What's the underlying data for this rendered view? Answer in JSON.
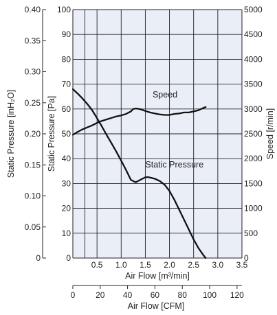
{
  "chart_data": {
    "type": "line",
    "plot_bg": "#e9eef7",
    "line_color": "#111111",
    "grid": true,
    "x_primary": {
      "label": "Air Flow [m³/min]",
      "range": [
        0,
        3.5
      ],
      "ticks": [
        "0.5",
        "1.0",
        "1.5",
        "2.0",
        "2.5",
        "3.0",
        "3.5"
      ],
      "tick_values": [
        0.5,
        1.0,
        1.5,
        2.0,
        2.5,
        3.0,
        3.5
      ]
    },
    "x_secondary": {
      "label": "Air Flow [CFM]",
      "range": [
        0,
        123.6
      ],
      "ticks": [
        "0",
        "20",
        "40",
        "60",
        "80",
        "100",
        "120"
      ],
      "tick_values": [
        0,
        20,
        40,
        60,
        80,
        100,
        120
      ]
    },
    "y_left_outer": {
      "label": "Static Pressure [inH₂O]",
      "ticks": [
        "0",
        "0.05",
        "0.10",
        "0.15",
        "0.20",
        "0.25",
        "0.30",
        "0.35",
        "0.40"
      ],
      "tick_values": [
        0,
        0.05,
        0.1,
        0.15,
        0.2,
        0.25,
        0.3,
        0.35,
        0.4
      ]
    },
    "y_left_inner": {
      "label": "Static Pressure [Pa]",
      "range": [
        0,
        100
      ],
      "ticks": [
        "0",
        "10",
        "20",
        "30",
        "40",
        "50",
        "60",
        "70",
        "80",
        "90",
        "100"
      ],
      "tick_values": [
        0,
        10,
        20,
        30,
        40,
        50,
        60,
        70,
        80,
        90,
        100
      ]
    },
    "y_right": {
      "label": "Speed [r/min]",
      "range": [
        0,
        5000
      ],
      "ticks": [
        "0",
        "500",
        "1000",
        "1500",
        "2000",
        "2500",
        "3000",
        "3500",
        "4000",
        "4500",
        "5000"
      ],
      "tick_values": [
        0,
        500,
        1000,
        1500,
        2000,
        2500,
        3000,
        3500,
        4000,
        4500,
        5000
      ]
    },
    "series": [
      {
        "name": "Static Pressure",
        "axis": "y_left_inner",
        "x": [
          0,
          0.1,
          0.2,
          0.3,
          0.4,
          0.5,
          0.6,
          0.7,
          0.8,
          0.9,
          1.0,
          1.1,
          1.2,
          1.3,
          1.35,
          1.45,
          1.5,
          1.55,
          1.6,
          1.7,
          1.8,
          1.9,
          2.0,
          2.1,
          2.2,
          2.3,
          2.4,
          2.5,
          2.6,
          2.7,
          2.75
        ],
        "y": [
          68,
          66.2,
          64.2,
          62,
          59.5,
          56.3,
          53,
          49.5,
          46.2,
          42.8,
          39.2,
          35.5,
          31.5,
          30.5,
          31,
          32,
          32.5,
          32.6,
          32.4,
          31.9,
          31,
          29.5,
          27,
          23.5,
          19.5,
          15.5,
          11.5,
          7.5,
          4,
          1.2,
          0
        ]
      },
      {
        "name": "Speed",
        "axis": "y_right",
        "x": [
          0,
          0.1,
          0.2,
          0.3,
          0.4,
          0.5,
          0.6,
          0.7,
          0.8,
          0.9,
          1.0,
          1.1,
          1.2,
          1.25,
          1.3,
          1.35,
          1.4,
          1.5,
          1.6,
          1.7,
          1.8,
          1.9,
          2.0,
          2.1,
          2.2,
          2.3,
          2.4,
          2.5,
          2.6,
          2.7,
          2.75
        ],
        "y": [
          2480,
          2540,
          2590,
          2630,
          2670,
          2720,
          2760,
          2790,
          2820,
          2850,
          2870,
          2900,
          2950,
          3000,
          3010,
          3005,
          2995,
          2960,
          2930,
          2910,
          2890,
          2880,
          2880,
          2900,
          2910,
          2930,
          2930,
          2950,
          2975,
          3020,
          3040
        ]
      }
    ],
    "annotations": [
      {
        "text": "Speed",
        "x": 1.65,
        "y_right": 3230
      },
      {
        "text": "Static Pressure",
        "x": 1.5,
        "y_left_inner": 36.5
      }
    ]
  }
}
